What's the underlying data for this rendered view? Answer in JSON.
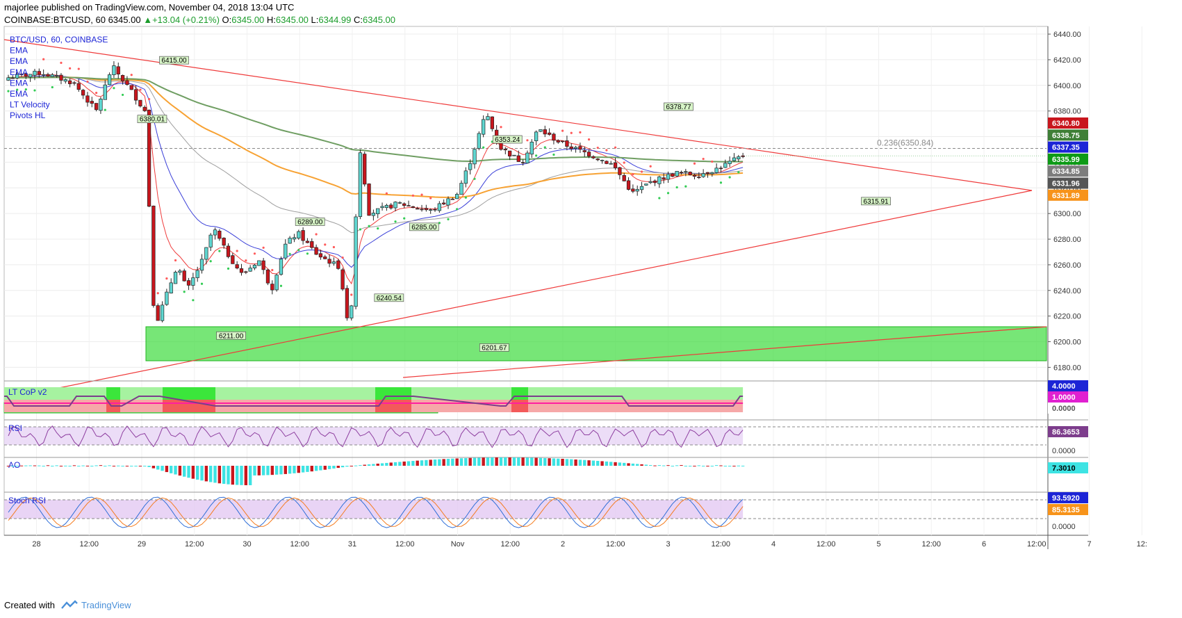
{
  "header": {
    "line1": "majorlee published on TradingView.com, November 04, 2018 13:04 UTC",
    "symbol": "COINBASE:BTCUSD, 60",
    "last": "6345.00",
    "change_arrow": "▲",
    "change": "+13.04 (+0.21%)",
    "o_label": "O:",
    "o_value": "6345.00",
    "h_label": "H:",
    "h_value": "6345.00",
    "l_label": "L:",
    "l_value": "6344.99",
    "c_label": "C:",
    "c_value": "6345.00"
  },
  "legend": [
    "BTC/USD, 60, COINBASE",
    "EMA",
    "EMA",
    "EMA",
    "EMA",
    "EMA",
    "LT Velocity",
    "Pivots HL"
  ],
  "footer": {
    "created": "Created with",
    "brand": "TradingView"
  },
  "colors": {
    "up": "#5fd6d0",
    "down": "#c8161d",
    "trend": "#ef3a3a",
    "zone": "#3ddc3d",
    "ema_fast": "#ef3a3a",
    "ema_blue": "#3a3fd8",
    "ema_gray": "#9e9e9e",
    "ema_orange": "#f7a233",
    "ema_green": "#6f9e62",
    "sar_red": "#ff5a5a",
    "sar_green": "#33cc55"
  },
  "chart_data": [
    {
      "type": "candlestick",
      "symbol": "BTC/USD",
      "interval": "60",
      "exchange": "COINBASE",
      "ylim": [
        6171,
        6446
      ],
      "y_ticks": [
        "6180.00",
        "6200.00",
        "6220.00",
        "6240.00",
        "6260.00",
        "6280.00",
        "6300.00",
        "6320.00",
        "6340.00",
        "6360.00",
        "6380.00",
        "6400.00",
        "6420.00",
        "6440.00"
      ],
      "x_ticks": [
        "28",
        "12:00",
        "29",
        "12:00",
        "30",
        "12:00",
        "31",
        "12:00",
        "Nov",
        "12:00",
        "2",
        "12:00",
        "3",
        "12:00",
        "4",
        "12:00",
        "5",
        "12:00",
        "6",
        "12:00",
        "7",
        "12:"
      ],
      "pivots": [
        {
          "label": "6415.00",
          "price": 6415.0,
          "type": "high"
        },
        {
          "label": "6380.01",
          "price": 6380.01,
          "type": "low"
        },
        {
          "label": "6211.00",
          "price": 6211.0,
          "type": "low"
        },
        {
          "label": "6289.00",
          "price": 6289.0,
          "type": "high"
        },
        {
          "label": "6240.54",
          "price": 6240.54,
          "type": "low"
        },
        {
          "label": "6285.00",
          "price": 6285.0,
          "type": "high"
        },
        {
          "label": "6353.24",
          "price": 6353.24,
          "type": "high"
        },
        {
          "label": "6201.67",
          "price": 6201.67,
          "type": "low"
        },
        {
          "label": "6378.77",
          "price": 6378.77,
          "type": "high"
        },
        {
          "label": "6315.91",
          "price": 6315.91,
          "type": "low"
        }
      ],
      "fib_label": "0.236(6350.84)",
      "fib_level": 6350.84,
      "price_tags": [
        {
          "value": "6340.80",
          "color": "#c8161d"
        },
        {
          "value": "6338.75",
          "color": "#3f7f37"
        },
        {
          "value": "6337.35",
          "color": "#1c24d6"
        },
        {
          "value": "6335.99",
          "color": "#0d9a16"
        },
        {
          "value": "6334.85",
          "color": "#7d7d7d"
        },
        {
          "value": "6331.96",
          "color": "#555555"
        },
        {
          "value": "6331.89",
          "color": "#f7931a"
        }
      ]
    },
    {
      "type": "area",
      "title": "LT CoP v2",
      "ticks": [
        {
          "value": "4.0000",
          "color": "#1c24d6"
        },
        {
          "value": "1.0000",
          "color": "#e020d0"
        },
        {
          "value": "0.0000",
          "color": "#555555"
        }
      ]
    },
    {
      "type": "line",
      "title": "RSI",
      "last": "86.3653",
      "ticks": [
        "0.0000"
      ]
    },
    {
      "type": "bar",
      "title": "AO",
      "last": "7.3010"
    },
    {
      "type": "line",
      "title": "Stoch RSI",
      "k_last": "93.5920",
      "d_last": "85.3135",
      "ticks": [
        "0.0000"
      ]
    }
  ]
}
